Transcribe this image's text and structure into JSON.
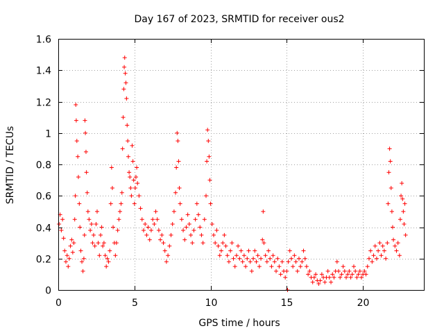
{
  "chart_data": {
    "type": "scatter",
    "title": "Day 167 of 2023, SRMTID for receiver ous2",
    "xlabel": "GPS time / hours",
    "ylabel": "SRMTID / TECUs",
    "xlim": [
      0,
      24
    ],
    "ylim": [
      0,
      1.6
    ],
    "xticks": [
      0,
      5,
      10,
      15,
      20
    ],
    "yticks": [
      0,
      0.2,
      0.4,
      0.6,
      0.8,
      1,
      1.2,
      1.4,
      1.6
    ],
    "xtick_labels": [
      "0",
      "5",
      "10",
      "15",
      "20"
    ],
    "ytick_labels": [
      "0",
      "0.2",
      "0.4",
      "0.6",
      "0.8",
      "1",
      "1.2",
      "1.4",
      "1.6"
    ],
    "grid": true,
    "marker": "plus",
    "color": "#ff0000",
    "series": [
      {
        "name": "SRMTID",
        "points": [
          [
            0.05,
            0.42
          ],
          [
            0.12,
            0.48
          ],
          [
            0.2,
            0.38
          ],
          [
            0.28,
            0.45
          ],
          [
            0.35,
            0.33
          ],
          [
            0.42,
            0.25
          ],
          [
            0.5,
            0.18
          ],
          [
            0.58,
            0.22
          ],
          [
            0.65,
            0.15
          ],
          [
            0.72,
            0.2
          ],
          [
            0.8,
            0.28
          ],
          [
            0.88,
            0.32
          ],
          [
            0.95,
            0.24
          ],
          [
            1.02,
            0.3
          ],
          [
            1.08,
            0.45
          ],
          [
            1.12,
            0.6
          ],
          [
            1.15,
            1.18
          ],
          [
            1.18,
            1.08
          ],
          [
            1.22,
            0.95
          ],
          [
            1.28,
            0.85
          ],
          [
            1.32,
            0.72
          ],
          [
            1.38,
            0.55
          ],
          [
            1.42,
            0.4
          ],
          [
            1.48,
            0.25
          ],
          [
            1.55,
            0.18
          ],
          [
            1.62,
            0.12
          ],
          [
            1.68,
            0.2
          ],
          [
            1.72,
            0.35
          ],
          [
            1.75,
            1.08
          ],
          [
            1.78,
            1.0
          ],
          [
            1.82,
            0.88
          ],
          [
            1.85,
            0.75
          ],
          [
            1.9,
            0.62
          ],
          [
            1.95,
            0.5
          ],
          [
            2.02,
            0.45
          ],
          [
            2.1,
            0.38
          ],
          [
            2.18,
            0.42
          ],
          [
            2.25,
            0.3
          ],
          [
            2.32,
            0.35
          ],
          [
            2.4,
            0.28
          ],
          [
            2.48,
            0.42
          ],
          [
            2.55,
            0.5
          ],
          [
            2.62,
            0.3
          ],
          [
            2.7,
            0.22
          ],
          [
            2.78,
            0.35
          ],
          [
            2.85,
            0.4
          ],
          [
            2.92,
            0.28
          ],
          [
            3.0,
            0.3
          ],
          [
            3.08,
            0.22
          ],
          [
            3.15,
            0.15
          ],
          [
            3.22,
            0.2
          ],
          [
            3.3,
            0.18
          ],
          [
            3.38,
            0.25
          ],
          [
            3.45,
            0.55
          ],
          [
            3.5,
            0.78
          ],
          [
            3.55,
            0.65
          ],
          [
            3.6,
            0.4
          ],
          [
            3.68,
            0.3
          ],
          [
            3.75,
            0.22
          ],
          [
            3.82,
            0.3
          ],
          [
            3.9,
            0.38
          ],
          [
            3.98,
            0.45
          ],
          [
            4.05,
            0.5
          ],
          [
            4.12,
            0.55
          ],
          [
            4.18,
            0.62
          ],
          [
            4.22,
            0.9
          ],
          [
            4.26,
            1.1
          ],
          [
            4.3,
            1.28
          ],
          [
            4.33,
            1.42
          ],
          [
            4.36,
            1.48
          ],
          [
            4.4,
            1.38
          ],
          [
            4.44,
            1.32
          ],
          [
            4.48,
            1.22
          ],
          [
            4.52,
            1.05
          ],
          [
            4.56,
            0.95
          ],
          [
            4.6,
            0.85
          ],
          [
            4.65,
            0.75
          ],
          [
            4.7,
            0.72
          ],
          [
            4.75,
            0.65
          ],
          [
            4.8,
            0.6
          ],
          [
            4.85,
            0.92
          ],
          [
            4.9,
            0.82
          ],
          [
            4.95,
            0.7
          ],
          [
            5.0,
            0.55
          ],
          [
            5.05,
            0.65
          ],
          [
            5.1,
            0.72
          ],
          [
            5.15,
            0.78
          ],
          [
            5.2,
            0.68
          ],
          [
            5.3,
            0.6
          ],
          [
            5.4,
            0.52
          ],
          [
            5.5,
            0.45
          ],
          [
            5.6,
            0.38
          ],
          [
            5.7,
            0.42
          ],
          [
            5.8,
            0.35
          ],
          [
            5.9,
            0.4
          ],
          [
            6.0,
            0.32
          ],
          [
            6.1,
            0.38
          ],
          [
            6.2,
            0.45
          ],
          [
            6.3,
            0.42
          ],
          [
            6.4,
            0.5
          ],
          [
            6.5,
            0.45
          ],
          [
            6.6,
            0.38
          ],
          [
            6.7,
            0.32
          ],
          [
            6.8,
            0.35
          ],
          [
            6.9,
            0.3
          ],
          [
            7.0,
            0.25
          ],
          [
            7.1,
            0.18
          ],
          [
            7.2,
            0.22
          ],
          [
            7.3,
            0.28
          ],
          [
            7.4,
            0.35
          ],
          [
            7.5,
            0.42
          ],
          [
            7.6,
            0.5
          ],
          [
            7.7,
            0.62
          ],
          [
            7.75,
            0.78
          ],
          [
            7.8,
            1.0
          ],
          [
            7.85,
            0.95
          ],
          [
            7.9,
            0.82
          ],
          [
            7.95,
            0.65
          ],
          [
            8.0,
            0.55
          ],
          [
            8.1,
            0.45
          ],
          [
            8.2,
            0.38
          ],
          [
            8.3,
            0.32
          ],
          [
            8.4,
            0.4
          ],
          [
            8.5,
            0.48
          ],
          [
            8.6,
            0.42
          ],
          [
            8.7,
            0.35
          ],
          [
            8.8,
            0.3
          ],
          [
            8.9,
            0.38
          ],
          [
            9.0,
            0.45
          ],
          [
            9.1,
            0.55
          ],
          [
            9.2,
            0.48
          ],
          [
            9.3,
            0.4
          ],
          [
            9.4,
            0.35
          ],
          [
            9.5,
            0.3
          ],
          [
            9.6,
            0.45
          ],
          [
            9.7,
            0.6
          ],
          [
            9.75,
            0.82
          ],
          [
            9.8,
            1.02
          ],
          [
            9.85,
            0.95
          ],
          [
            9.9,
            0.85
          ],
          [
            9.95,
            0.7
          ],
          [
            10.0,
            0.55
          ],
          [
            10.1,
            0.42
          ],
          [
            10.2,
            0.35
          ],
          [
            10.3,
            0.3
          ],
          [
            10.4,
            0.38
          ],
          [
            10.5,
            0.28
          ],
          [
            10.6,
            0.22
          ],
          [
            10.7,
            0.25
          ],
          [
            10.8,
            0.3
          ],
          [
            10.9,
            0.35
          ],
          [
            11.0,
            0.28
          ],
          [
            11.1,
            0.22
          ],
          [
            11.2,
            0.18
          ],
          [
            11.3,
            0.25
          ],
          [
            11.4,
            0.3
          ],
          [
            11.5,
            0.2
          ],
          [
            11.6,
            0.15
          ],
          [
            11.7,
            0.22
          ],
          [
            11.8,
            0.28
          ],
          [
            11.9,
            0.2
          ],
          [
            12.0,
            0.25
          ],
          [
            12.1,
            0.18
          ],
          [
            12.2,
            0.22
          ],
          [
            12.3,
            0.15
          ],
          [
            12.4,
            0.2
          ],
          [
            12.5,
            0.25
          ],
          [
            12.6,
            0.18
          ],
          [
            12.7,
            0.12
          ],
          [
            12.8,
            0.2
          ],
          [
            12.9,
            0.25
          ],
          [
            13.0,
            0.18
          ],
          [
            13.1,
            0.22
          ],
          [
            13.2,
            0.15
          ],
          [
            13.3,
            0.2
          ],
          [
            13.4,
            0.32
          ],
          [
            13.45,
            0.5
          ],
          [
            13.5,
            0.3
          ],
          [
            13.6,
            0.22
          ],
          [
            13.7,
            0.18
          ],
          [
            13.8,
            0.25
          ],
          [
            13.9,
            0.2
          ],
          [
            14.0,
            0.15
          ],
          [
            14.1,
            0.22
          ],
          [
            14.2,
            0.18
          ],
          [
            14.3,
            0.12
          ],
          [
            14.4,
            0.2
          ],
          [
            14.5,
            0.15
          ],
          [
            14.6,
            0.1
          ],
          [
            14.7,
            0.18
          ],
          [
            14.8,
            0.12
          ],
          [
            14.9,
            0.08
          ],
          [
            15.0,
            0.12
          ],
          [
            15.05,
            0.0
          ],
          [
            15.1,
            0.18
          ],
          [
            15.2,
            0.25
          ],
          [
            15.3,
            0.2
          ],
          [
            15.4,
            0.15
          ],
          [
            15.5,
            0.22
          ],
          [
            15.6,
            0.18
          ],
          [
            15.7,
            0.12
          ],
          [
            15.8,
            0.2
          ],
          [
            15.9,
            0.15
          ],
          [
            16.0,
            0.18
          ],
          [
            16.1,
            0.25
          ],
          [
            16.2,
            0.2
          ],
          [
            16.3,
            0.15
          ],
          [
            16.4,
            0.1
          ],
          [
            16.5,
            0.12
          ],
          [
            16.6,
            0.08
          ],
          [
            16.7,
            0.05
          ],
          [
            16.8,
            0.08
          ],
          [
            16.9,
            0.1
          ],
          [
            17.0,
            0.06
          ],
          [
            17.1,
            0.04
          ],
          [
            17.2,
            0.06
          ],
          [
            17.3,
            0.1
          ],
          [
            17.4,
            0.08
          ],
          [
            17.5,
            0.05
          ],
          [
            17.6,
            0.08
          ],
          [
            17.7,
            0.12
          ],
          [
            17.8,
            0.08
          ],
          [
            17.9,
            0.05
          ],
          [
            18.0,
            0.1
          ],
          [
            18.1,
            0.08
          ],
          [
            18.2,
            0.12
          ],
          [
            18.3,
            0.18
          ],
          [
            18.4,
            0.12
          ],
          [
            18.5,
            0.08
          ],
          [
            18.6,
            0.1
          ],
          [
            18.7,
            0.15
          ],
          [
            18.8,
            0.12
          ],
          [
            18.9,
            0.08
          ],
          [
            19.0,
            0.1
          ],
          [
            19.1,
            0.12
          ],
          [
            19.2,
            0.08
          ],
          [
            19.3,
            0.1
          ],
          [
            19.4,
            0.15
          ],
          [
            19.5,
            0.12
          ],
          [
            19.6,
            0.08
          ],
          [
            19.7,
            0.1
          ],
          [
            19.8,
            0.12
          ],
          [
            19.9,
            0.08
          ],
          [
            20.0,
            0.1
          ],
          [
            20.1,
            0.12
          ],
          [
            20.2,
            0.1
          ],
          [
            20.3,
            0.15
          ],
          [
            20.4,
            0.2
          ],
          [
            20.5,
            0.25
          ],
          [
            20.6,
            0.18
          ],
          [
            20.7,
            0.22
          ],
          [
            20.8,
            0.28
          ],
          [
            20.9,
            0.2
          ],
          [
            21.0,
            0.25
          ],
          [
            21.1,
            0.3
          ],
          [
            21.2,
            0.22
          ],
          [
            21.3,
            0.28
          ],
          [
            21.4,
            0.25
          ],
          [
            21.5,
            0.2
          ],
          [
            21.6,
            0.3
          ],
          [
            21.65,
            0.55
          ],
          [
            21.7,
            0.75
          ],
          [
            21.75,
            0.9
          ],
          [
            21.8,
            0.82
          ],
          [
            21.85,
            0.65
          ],
          [
            21.9,
            0.5
          ],
          [
            21.95,
            0.4
          ],
          [
            22.0,
            0.32
          ],
          [
            22.1,
            0.28
          ],
          [
            22.2,
            0.25
          ],
          [
            22.3,
            0.3
          ],
          [
            22.4,
            0.22
          ],
          [
            22.45,
            0.45
          ],
          [
            22.5,
            0.6
          ],
          [
            22.55,
            0.68
          ],
          [
            22.6,
            0.58
          ],
          [
            22.65,
            0.5
          ],
          [
            22.7,
            0.42
          ],
          [
            22.75,
            0.55
          ],
          [
            22.8,
            0.35
          ]
        ]
      }
    ]
  }
}
